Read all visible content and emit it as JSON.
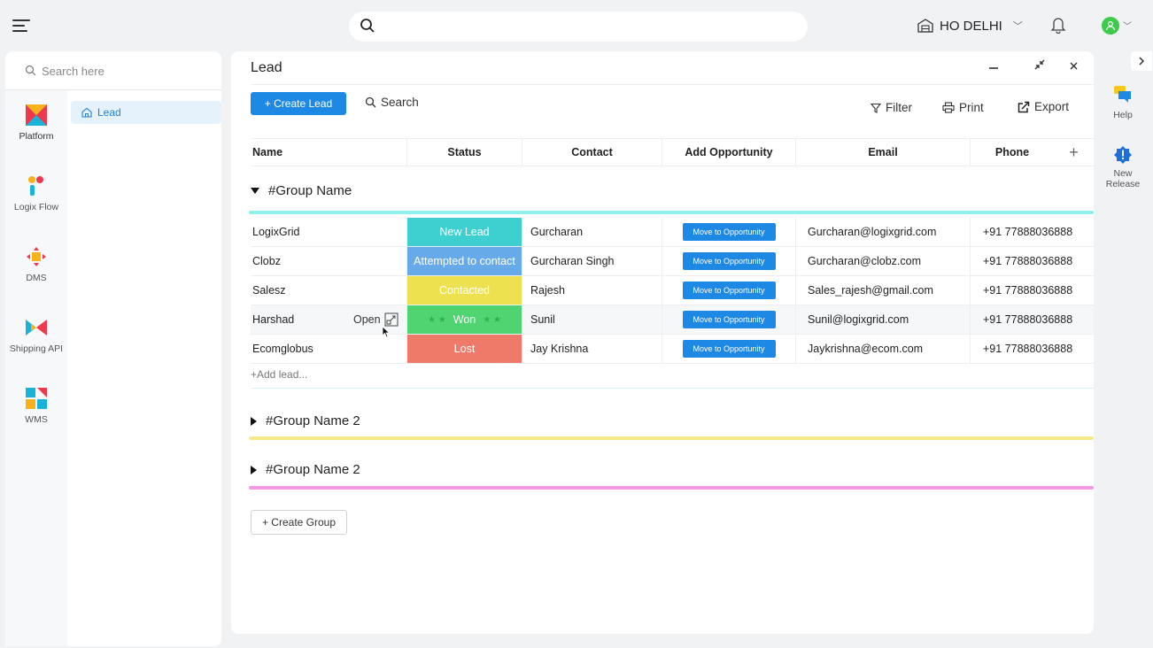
{
  "topbar": {
    "branch": "HO DELHI"
  },
  "sidebar": {
    "search_placeholder": "Search here",
    "apps": [
      {
        "label": "Platform"
      },
      {
        "label": "Logix Flow"
      },
      {
        "label": "DMS"
      },
      {
        "label": "Shipping API"
      },
      {
        "label": "WMS"
      }
    ],
    "module": "Lead"
  },
  "panel": {
    "title": "Lead",
    "create_label": "+ Create Lead",
    "search_label": "Search",
    "filter_label": "Filter",
    "print_label": "Print",
    "export_label": "Export"
  },
  "table": {
    "columns": [
      "Name",
      "Status",
      "Contact",
      "Add Opportunity",
      "Email",
      "Phone"
    ],
    "add_column": "+",
    "groups": [
      {
        "name": "#Group Name",
        "color": "#8ff0ee",
        "expanded": true
      },
      {
        "name": "#Group Name 2",
        "color": "#f5e98a",
        "expanded": false
      },
      {
        "name": "#Group Name 2",
        "color": "#f29ae8",
        "expanded": false
      }
    ],
    "rows": [
      {
        "name": "LogixGrid",
        "status": "New Lead",
        "status_color": "#3ecfd0",
        "contact": "Gurcharan",
        "opportunity": "Move to Opportunity",
        "email": "Gurcharan@logixgrid.com",
        "phone": "+91 77888036888"
      },
      {
        "name": "Clobz",
        "status": "Attempted to contact",
        "status_color": "#67aae9",
        "contact": "Gurcharan Singh",
        "opportunity": "Move to Opportunity",
        "email": "Gurcharan@clobz.com",
        "phone": "+91 77888036888"
      },
      {
        "name": "Salesz",
        "status": "Contacted",
        "status_color": "#ede14f",
        "contact": "Rajesh",
        "opportunity": "Move to Opportunity",
        "email": "Sales_rajesh@gmail.com",
        "phone": "+91 77888036888"
      },
      {
        "name": "Harshad",
        "status": "Won",
        "status_color": "#4fd471",
        "contact": "Sunil",
        "opportunity": "Move to Opportunity",
        "email": "Sunil@logixgrid.com",
        "phone": "+91 77888036888",
        "open_label": "Open"
      },
      {
        "name": "Ecomglobus",
        "status": "Lost",
        "status_color": "#f07a6a",
        "contact": "Jay Krishna",
        "opportunity": "Move to Opportunity",
        "email": "Jaykrishna@ecom.com",
        "phone": "+91 77888036888"
      }
    ],
    "add_lead": "+Add lead...",
    "create_group": "+ Create Group"
  },
  "rail": {
    "help": "Help",
    "new_release_1": "New",
    "new_release_2": "Release"
  }
}
